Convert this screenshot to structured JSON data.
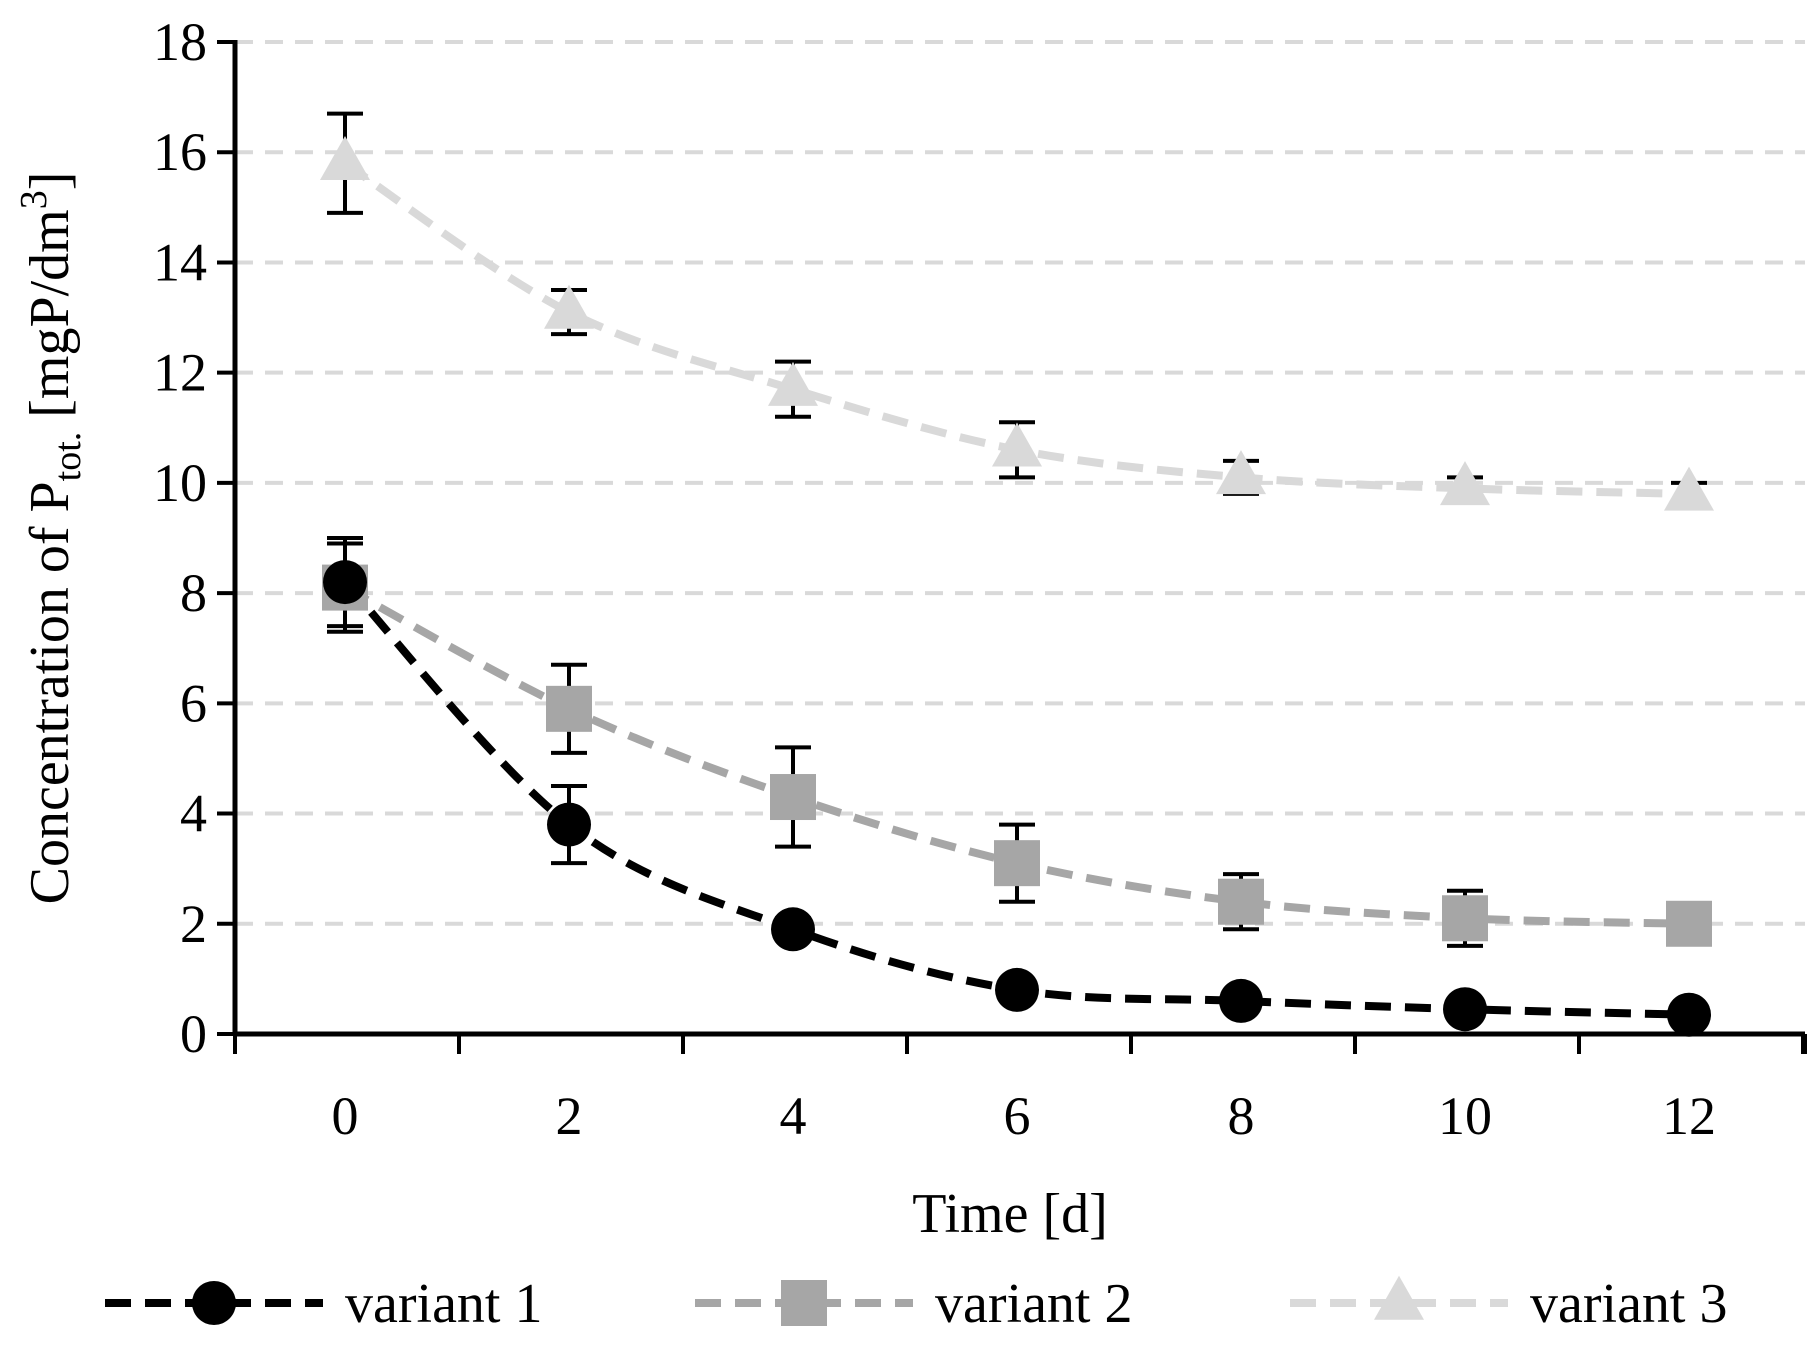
{
  "chart_data": {
    "type": "line",
    "title": "",
    "xlabel": "Time [d]",
    "ylabel": {
      "prefix": "Concentration of P",
      "subscript": "tot.",
      "unit_base": " [mgP/dm",
      "unit_sup": "3",
      "unit_close": "]"
    },
    "x": [
      0,
      2,
      4,
      6,
      8,
      10,
      12
    ],
    "x_tick_labels": [
      "0",
      "2",
      "4",
      "6",
      "8",
      "10",
      "12"
    ],
    "ylim": [
      0,
      18
    ],
    "y_ticks": [
      0,
      2,
      4,
      6,
      8,
      10,
      12,
      14,
      16,
      18
    ],
    "y_tick_labels": [
      "0",
      "2",
      "4",
      "6",
      "8",
      "10",
      "12",
      "14",
      "16",
      "18"
    ],
    "grid": "horizontal dashed",
    "legend_position": "bottom",
    "series": [
      {
        "name": "variant 1",
        "marker": "circle",
        "color": "#000000",
        "values": [
          8.2,
          3.8,
          1.9,
          0.8,
          0.6,
          0.45,
          0.35
        ],
        "error": [
          0.8,
          0.7,
          0.2,
          0.1,
          0.05,
          0.05,
          0.05
        ]
      },
      {
        "name": "variant 2",
        "marker": "square",
        "color": "#a6a6a6",
        "values": [
          8.1,
          5.9,
          4.3,
          3.1,
          2.4,
          2.1,
          2.0
        ],
        "error": [
          0.8,
          0.8,
          0.9,
          0.7,
          0.5,
          0.5,
          0.05
        ]
      },
      {
        "name": "variant 3",
        "marker": "triangle",
        "color": "#d9d9d9",
        "values": [
          15.8,
          13.1,
          11.7,
          10.6,
          10.1,
          9.9,
          9.8
        ],
        "error": [
          0.9,
          0.4,
          0.5,
          0.5,
          0.3,
          0.2,
          0.2
        ]
      }
    ]
  },
  "colors": {
    "axis": "#000000",
    "grid": "#d9d9d9",
    "errorbar": "#000000"
  }
}
